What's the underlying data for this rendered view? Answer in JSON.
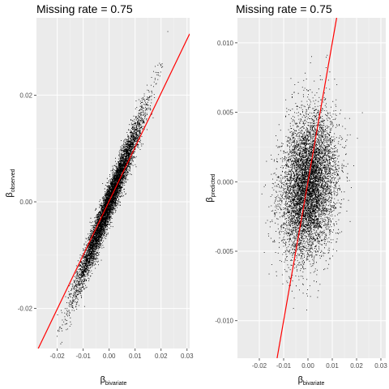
{
  "chart_data": [
    {
      "type": "scatter",
      "title": "Missing rate = 0.75",
      "xlabel": {
        "symbol": "β",
        "subscript": "bivariate"
      },
      "ylabel": {
        "symbol": "β",
        "subscript": "observed"
      },
      "xlim": [
        -0.028,
        0.031
      ],
      "ylim": [
        -0.0275,
        0.0345
      ],
      "xticks": [
        {
          "value": -0.02,
          "label": "-0.02"
        },
        {
          "value": -0.01,
          "label": "-0.01"
        },
        {
          "value": 0.0,
          "label": "0.00"
        },
        {
          "value": 0.01,
          "label": "0.01"
        },
        {
          "value": 0.02,
          "label": "0.02"
        },
        {
          "value": 0.03,
          "label": "0.03"
        }
      ],
      "yticks": [
        {
          "value": -0.02,
          "label": "-0.02"
        },
        {
          "value": 0.0,
          "label": "0.00"
        },
        {
          "value": 0.02,
          "label": "0.02"
        }
      ],
      "cloud": {
        "center": [
          0.0,
          0.0
        ],
        "sd_x": 0.0062,
        "slope": 1.25,
        "residual_sd": 0.0018,
        "n_points": 7000
      },
      "fit_line": {
        "color": "#ff0000",
        "points": [
          [
            -0.028,
            -0.0282
          ],
          [
            0.031,
            0.0315
          ]
        ]
      },
      "point_color": "#000000",
      "panel_background": "#ebebeb",
      "grid": true
    },
    {
      "type": "scatter",
      "title": "Missing rate = 0.75",
      "xlabel": {
        "symbol": "β",
        "subscript": "bivariate"
      },
      "ylabel": {
        "symbol": "β",
        "subscript": "predicted"
      },
      "xlim": [
        -0.029,
        0.032
      ],
      "ylim": [
        -0.0127,
        0.0118
      ],
      "xticks": [
        {
          "value": -0.02,
          "label": "-0.02"
        },
        {
          "value": -0.01,
          "label": "-0.01"
        },
        {
          "value": 0.0,
          "label": "0.00"
        },
        {
          "value": 0.01,
          "label": "0.01"
        },
        {
          "value": 0.02,
          "label": "0.02"
        },
        {
          "value": 0.03,
          "label": "0.03"
        }
      ],
      "yticks": [
        {
          "value": -0.01,
          "label": "-0.010"
        },
        {
          "value": -0.005,
          "label": "-0.005"
        },
        {
          "value": 0.0,
          "label": "0.000"
        },
        {
          "value": 0.005,
          "label": "0.005"
        },
        {
          "value": 0.01,
          "label": "0.010"
        }
      ],
      "cloud": {
        "center": [
          0.0,
          -0.0003
        ],
        "sd_x": 0.0055,
        "slope": 0.08,
        "residual_sd": 0.0025,
        "n_points": 7000
      },
      "fit_line": {
        "color": "#ff0000",
        "points": [
          [
            -0.0127,
            -0.0127
          ],
          [
            0.0118,
            0.0118
          ]
        ]
      },
      "point_color": "#000000",
      "panel_background": "#ebebeb",
      "grid": true
    }
  ]
}
